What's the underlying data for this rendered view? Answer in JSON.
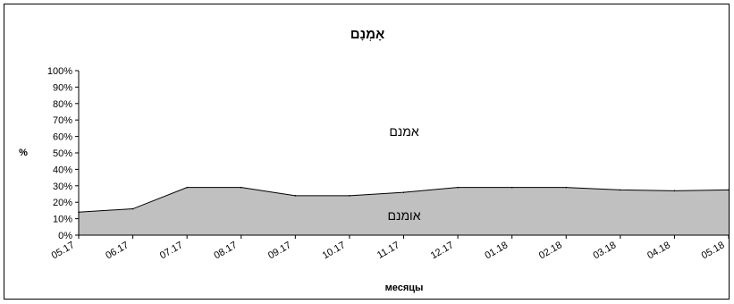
{
  "chart_data": {
    "type": "area",
    "title": "אָמְנָם",
    "xlabel": "месяцы",
    "ylabel": "%",
    "ylim": [
      0,
      100
    ],
    "yticks": [
      "0%",
      "10%",
      "20%",
      "30%",
      "40%",
      "50%",
      "60%",
      "70%",
      "80%",
      "90%",
      "100%"
    ],
    "categories": [
      "05.17",
      "06.17",
      "07.17",
      "08.17",
      "09.17",
      "10.17",
      "11.17",
      "12.17",
      "01.18",
      "02.18",
      "03.18",
      "04.18",
      "05.18"
    ],
    "series": [
      {
        "name": "אומנם",
        "values": [
          14,
          16,
          29,
          29,
          24,
          24,
          26,
          29,
          29,
          29,
          27.5,
          27,
          27.5
        ],
        "color": "#c0c0c0"
      },
      {
        "name": "אמנם",
        "values": [
          86,
          84,
          71,
          71,
          76,
          76,
          74,
          71,
          71,
          71,
          72.5,
          73,
          72.5
        ],
        "color": "#ffffff"
      }
    ],
    "grid": false,
    "legend": "none"
  }
}
